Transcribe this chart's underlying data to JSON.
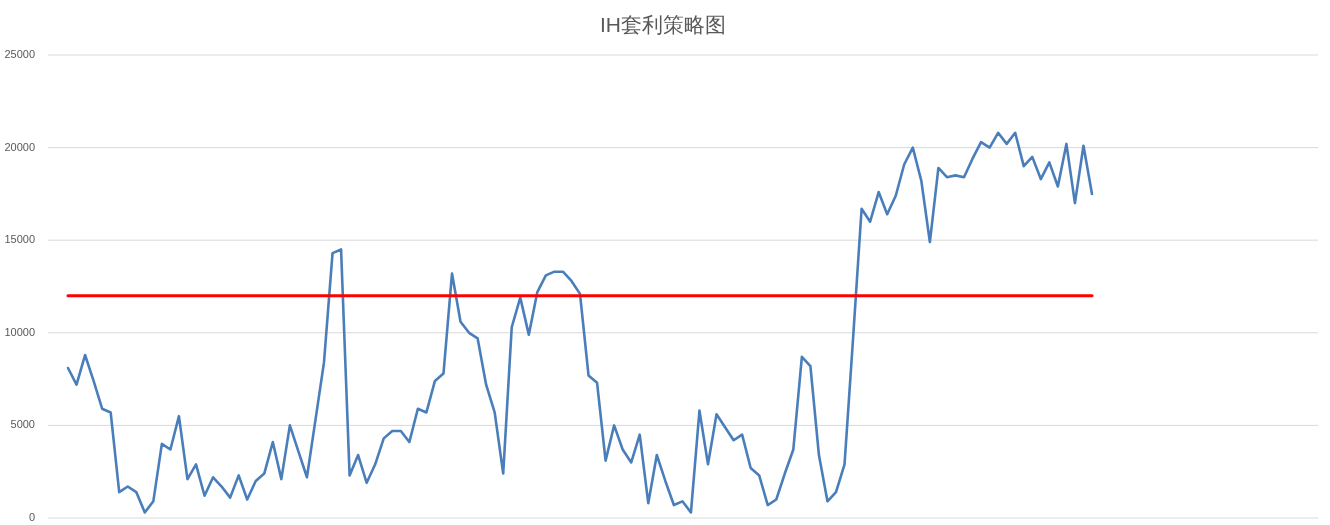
{
  "chart_data": {
    "type": "line",
    "title": "IH套利策略图",
    "categories": [
      null,
      null,
      null,
      null,
      null,
      null,
      null,
      null,
      null,
      null,
      null,
      null,
      null,
      null,
      null,
      null,
      null,
      null,
      null,
      null,
      null,
      null,
      null,
      null,
      null,
      null,
      null,
      null,
      null,
      null,
      null,
      null,
      null,
      null,
      null,
      null,
      null,
      null,
      null,
      null,
      null,
      null,
      null,
      null,
      null,
      null,
      null,
      null,
      null,
      null,
      null,
      null,
      null,
      null,
      null,
      null,
      null,
      null,
      null,
      null,
      null,
      null,
      null,
      null,
      null,
      null,
      null,
      null,
      null,
      null,
      null,
      null,
      null,
      null,
      null,
      null,
      null,
      null,
      null,
      null,
      null,
      null,
      null,
      null,
      null,
      null,
      null,
      null,
      null,
      null,
      null,
      null,
      null,
      null,
      null,
      null,
      null,
      null,
      null,
      null,
      null,
      null,
      null,
      null,
      null,
      null,
      null,
      null,
      null,
      null,
      null,
      null,
      null,
      null,
      null,
      null,
      null,
      null,
      null,
      null,
      null
    ],
    "series": [
      {
        "color": "#4a7ebb",
        "values": [
          8100,
          7200,
          8800,
          7400,
          5900,
          5700,
          1400,
          1700,
          1400,
          300,
          900,
          4000,
          3700,
          5500,
          2100,
          2900,
          1200,
          2200,
          1700,
          1100,
          2300,
          1000,
          2000,
          2400,
          4100,
          2100,
          5000,
          3600,
          2200,
          5300,
          8400,
          14300,
          14500,
          2300,
          3400,
          1900,
          2900,
          4300,
          4700,
          4700,
          4100,
          5900,
          5700,
          7400,
          7800,
          13200,
          10600,
          10000,
          9700,
          7200,
          5700,
          2400,
          10300,
          11900,
          9900,
          12200,
          13100,
          13300,
          13300,
          12800,
          12100,
          7700,
          7300,
          3100,
          5000,
          3700,
          3000,
          4500,
          800,
          3400,
          2000,
          700,
          900,
          300,
          5800,
          2900,
          5600,
          4900,
          4200,
          4500,
          2700,
          2300,
          700,
          1000,
          2400,
          3700,
          8700,
          8200,
          3400,
          900,
          1400,
          2900,
          9700,
          16700,
          16000,
          17600,
          16400,
          17400,
          19100,
          20000,
          18200,
          14900,
          18900,
          18400,
          18500,
          18400,
          19400,
          20300,
          20000,
          20800,
          20200,
          20800,
          19000,
          19500,
          18300,
          19200,
          17900,
          20200,
          17000,
          20100,
          17500
        ]
      }
    ],
    "ylim": [
      0,
      25000
    ],
    "yticks": [
      0,
      5000,
      10000,
      15000,
      20000,
      25000
    ],
    "grid": "y",
    "tick_labels": "y",
    "ref_lines": [
      {
        "axis": "y",
        "value": 12000,
        "color": "#ff0000"
      }
    ]
  }
}
